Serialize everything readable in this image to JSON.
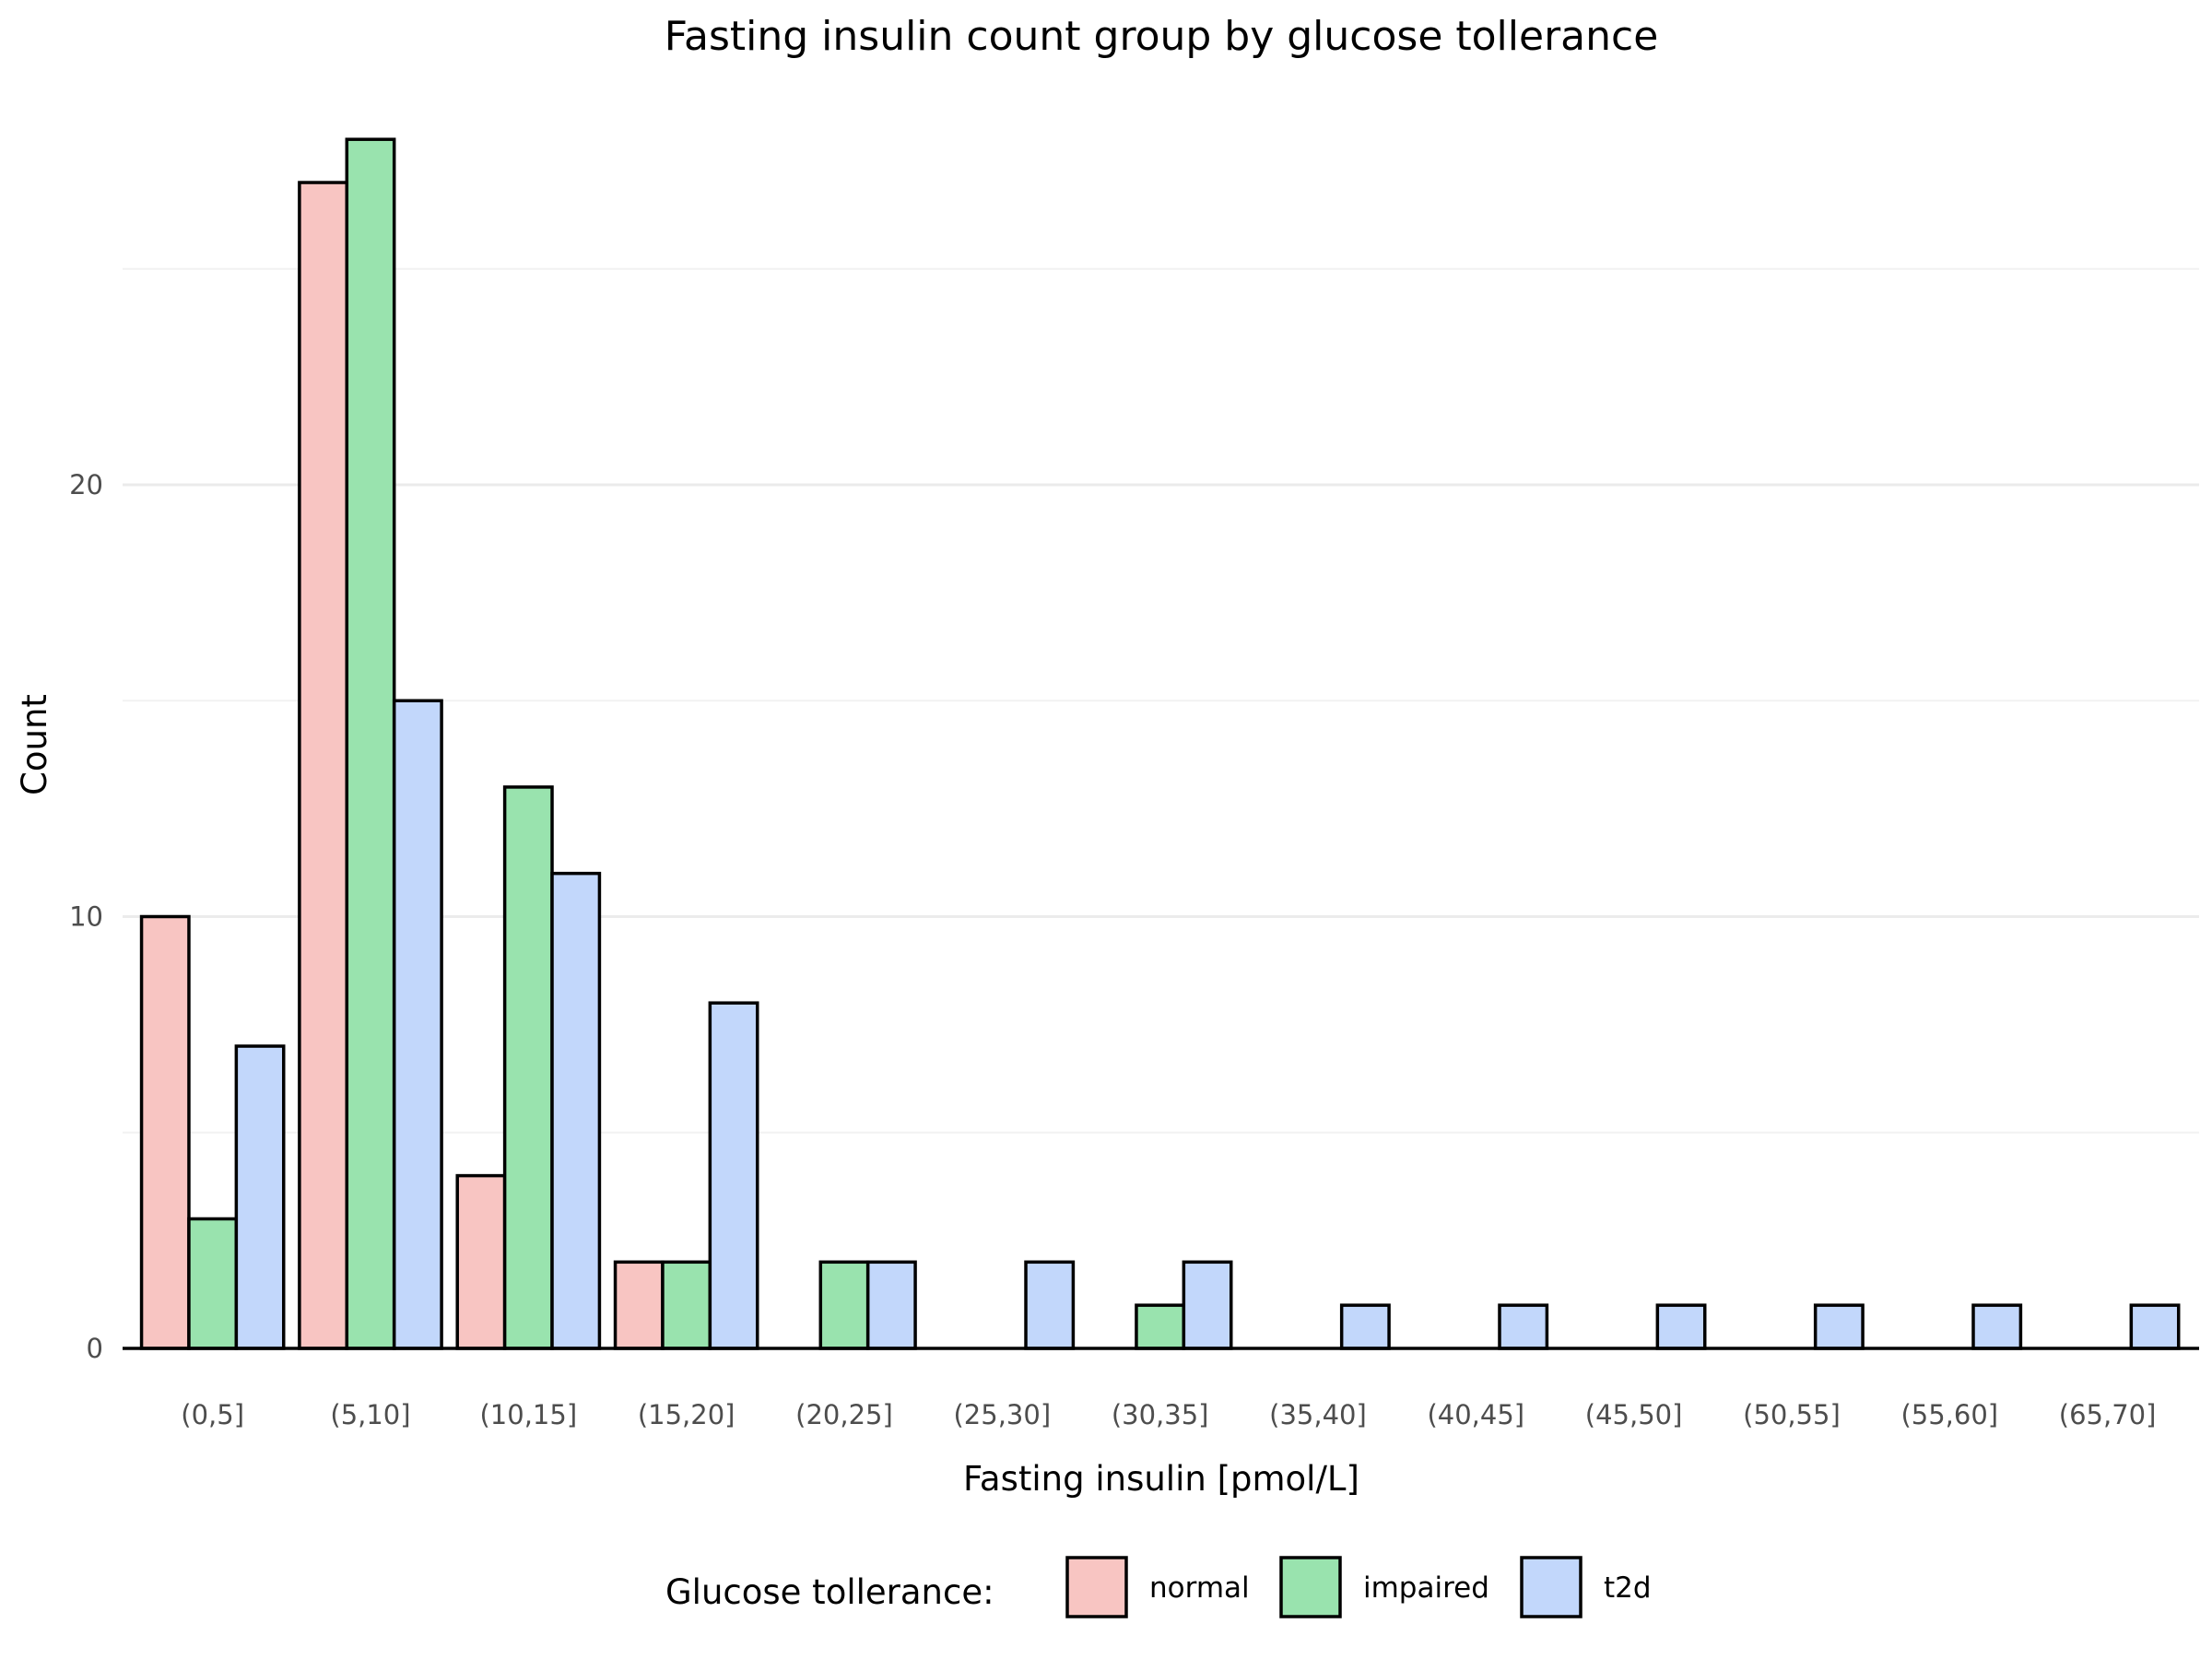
{
  "chart_data": {
    "type": "bar",
    "title": "Fasting insulin count group by glucose tollerance",
    "xlabel": "Fasting insulin [pmol/L]",
    "ylabel": "Count",
    "categories": [
      "(0,5]",
      "(5,10]",
      "(10,15]",
      "(15,20]",
      "(20,25]",
      "(25,30]",
      "(30,35]",
      "(35,40]",
      "(40,45]",
      "(45,50]",
      "(50,55]",
      "(55,60]",
      "(65,70]"
    ],
    "series": [
      {
        "name": "normal",
        "color": "#f8c5c2",
        "values": [
          10,
          27,
          4,
          2,
          0,
          0,
          0,
          0,
          0,
          0,
          0,
          0,
          0
        ]
      },
      {
        "name": "impaired",
        "color": "#99e3ae",
        "values": [
          3,
          28,
          13,
          2,
          2,
          0,
          1,
          0,
          0,
          0,
          0,
          0,
          0
        ]
      },
      {
        "name": "t2d",
        "color": "#c2d7fb",
        "values": [
          7,
          15,
          11,
          8,
          2,
          2,
          2,
          1,
          1,
          1,
          1,
          1,
          1
        ]
      }
    ],
    "yticks": [
      0,
      10,
      20
    ],
    "ylim": [
      0,
      29
    ],
    "grid": true,
    "legend": {
      "title": "Glucose tollerance:",
      "position": "bottom"
    }
  }
}
